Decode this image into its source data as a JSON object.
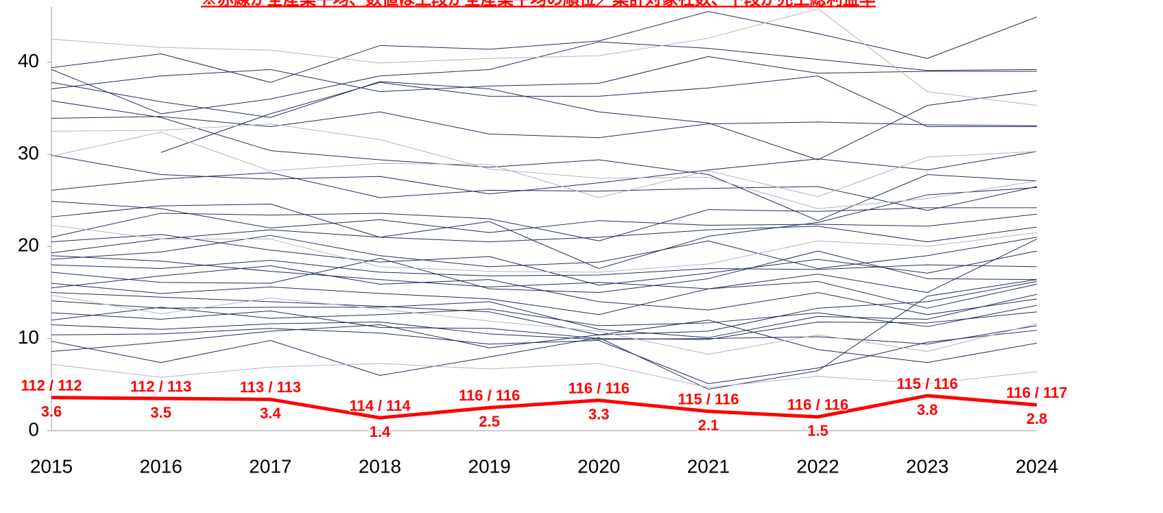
{
  "chart_data": {
    "type": "line",
    "title": "※赤線が全産業平均、数値は上段が全産業平均の順位／集計対象社数、下段が売上総利益率",
    "categories": [
      "2015",
      "2016",
      "2017",
      "2018",
      "2019",
      "2020",
      "2021",
      "2022",
      "2023",
      "2024"
    ],
    "ylim": [
      0,
      46
    ],
    "yticks": [
      0,
      10,
      20,
      30,
      40
    ],
    "grid": false,
    "series": [
      {
        "color": "#1f2d5a",
        "values": [
          39.4,
          40.9,
          37.8,
          41.8,
          41.4,
          42.3,
          45.5,
          43.1,
          40.4,
          44.9
        ]
      },
      {
        "color": "#1f2d5a",
        "values": [
          37.1,
          38.5,
          39.2,
          36.8,
          37.4,
          37.7,
          40.6,
          38.8,
          39.0,
          39.0
        ]
      },
      {
        "color": "#1f2d5a",
        "values": [
          39.2,
          34.4,
          36.0,
          38.5,
          39.2,
          42.2,
          41.5,
          40.3,
          39.1,
          39.2
        ]
      },
      {
        "color": "#1f2d5a",
        "values": [
          37.8,
          35.7,
          34.0,
          37.9,
          37.1,
          34.6,
          33.4,
          29.4,
          35.3,
          36.9
        ]
      },
      {
        "color": "#1f2d5a",
        "values": [
          null,
          30.2,
          34.4,
          37.8,
          36.3,
          36.3,
          37.2,
          38.5,
          33.0,
          33.0
        ]
      },
      {
        "color": "#1f2d5a",
        "values": [
          35.8,
          34.0,
          30.4,
          29.4,
          28.6,
          29.4,
          27.8,
          22.8,
          27.8,
          27.1
        ]
      },
      {
        "color": "#1f2d5a",
        "values": [
          33.9,
          34.1,
          33.0,
          34.6,
          32.2,
          31.8,
          33.3,
          33.5,
          33.2,
          33.1
        ]
      },
      {
        "color": "#1f2d5a",
        "values": [
          29.9,
          27.8,
          27.3,
          27.6,
          25.7,
          26.9,
          28.3,
          29.5,
          28.3,
          30.3
        ]
      },
      {
        "color": "#1f2d5a",
        "values": [
          26.1,
          27.3,
          28.0,
          25.3,
          26.1,
          26.0,
          26.3,
          26.5,
          23.9,
          26.5
        ]
      },
      {
        "color": "#1f2d5a",
        "values": [
          23.2,
          24.4,
          24.6,
          21.0,
          22.7,
          17.6,
          21.1,
          22.6,
          25.6,
          26.4
        ]
      },
      {
        "color": "#1f2d5a",
        "values": [
          21.0,
          23.6,
          23.4,
          23.6,
          23.0,
          20.6,
          24.0,
          23.8,
          24.2,
          24.2
        ]
      },
      {
        "color": "#1f2d5a",
        "values": [
          19.3,
          20.8,
          21.8,
          21.0,
          20.5,
          21.0,
          21.8,
          22.2,
          20.5,
          22.1
        ]
      },
      {
        "color": "#1f2d5a",
        "values": [
          18.6,
          19.4,
          21.2,
          19.0,
          17.8,
          18.3,
          20.6,
          17.6,
          19.0,
          21.0
        ]
      },
      {
        "color": "#1f2d5a",
        "values": [
          18.0,
          17.6,
          18.5,
          17.2,
          16.8,
          16.9,
          17.6,
          17.5,
          18.0,
          17.8
        ]
      },
      {
        "color": "#1f2d5a",
        "values": [
          17.2,
          16.1,
          16.0,
          18.7,
          15.4,
          15.0,
          16.5,
          19.5,
          16.5,
          16.4
        ]
      },
      {
        "color": "#1f2d5a",
        "values": [
          16.0,
          14.9,
          15.6,
          14.9,
          14.3,
          12.6,
          15.4,
          16.2,
          13.3,
          15.9
        ]
      },
      {
        "color": "#1f2d5a",
        "values": [
          15.0,
          14.5,
          14.0,
          13.5,
          12.9,
          10.4,
          10.8,
          13.3,
          14.0,
          16.2
        ]
      },
      {
        "color": "#1f2d5a",
        "values": [
          14.1,
          13.3,
          13.4,
          13.4,
          14.0,
          11.0,
          10.1,
          12.4,
          12.1,
          14.8
        ]
      },
      {
        "color": "#1f2d5a",
        "values": [
          12.8,
          12.1,
          13.0,
          11.2,
          11.1,
          10.0,
          9.9,
          11.8,
          11.7,
          12.9
        ]
      },
      {
        "color": "#1f2d5a",
        "values": [
          11.5,
          11.0,
          11.6,
          11.8,
          10.5,
          9.9,
          10.0,
          10.2,
          9.4,
          11.4
        ]
      },
      {
        "color": "#1f2d5a",
        "values": [
          10.4,
          10.5,
          11.1,
          10.6,
          9.4,
          9.8,
          5.1,
          6.8,
          9.6,
          10.9
        ]
      },
      {
        "color": "#1f2d5a",
        "values": [
          9.7,
          7.4,
          9.8,
          6.0,
          8.0,
          10.1,
          4.5,
          6.5,
          14.6,
          16.4
        ]
      },
      {
        "color": "#1f2d5a",
        "values": [
          8.6,
          9.6,
          10.8,
          11.5,
          9.0,
          10.4,
          12.0,
          8.8,
          7.4,
          9.5
        ]
      },
      {
        "color": "#1f2d5a",
        "values": [
          20.5,
          21.3,
          19.6,
          18.3,
          18.9,
          15.8,
          17.1,
          18.6,
          17.1,
          19.5
        ]
      },
      {
        "color": "#1f2d5a",
        "values": [
          15.5,
          16.8,
          17.9,
          15.9,
          16.4,
          14.0,
          13.1,
          15.0,
          12.6,
          14.3
        ]
      },
      {
        "color": "#1f2d5a",
        "values": [
          12.0,
          13.4,
          12.2,
          12.6,
          13.2,
          11.4,
          11.7,
          12.8,
          11.3,
          13.6
        ]
      },
      {
        "color": "#1f2d5a",
        "values": [
          24.9,
          24.1,
          22.0,
          22.9,
          21.5,
          22.8,
          22.3,
          22.4,
          22.2,
          23.5
        ]
      },
      {
        "color": "#1f2d5a",
        "values": [
          19.0,
          18.4,
          17.3,
          16.4,
          15.6,
          16.1,
          15.4,
          17.0,
          15.0,
          20.8
        ]
      },
      {
        "color": "#b0b4bc",
        "values": [
          42.5,
          41.6,
          41.3,
          39.9,
          40.4,
          40.7,
          42.6,
          45.8,
          36.8,
          35.3
        ]
      },
      {
        "color": "#b0b4bc",
        "values": [
          29.8,
          32.4,
          28.2,
          29.0,
          28.9,
          25.3,
          28.2,
          25.4,
          29.7,
          30.3
        ]
      },
      {
        "color": "#b0b4bc",
        "values": [
          22.3,
          20.8,
          20.8,
          17.8,
          17.3,
          17.2,
          18.1,
          20.6,
          20.0,
          21.5
        ]
      },
      {
        "color": "#b0b4bc",
        "values": [
          14.7,
          12.7,
          14.4,
          13.2,
          11.9,
          10.8,
          8.3,
          10.4,
          8.6,
          11.6
        ]
      },
      {
        "color": "#b0b4bc",
        "values": [
          7.2,
          5.8,
          6.9,
          7.3,
          6.7,
          7.3,
          4.7,
          5.9,
          5.1,
          6.4
        ]
      },
      {
        "color": "#b0b4bc",
        "values": [
          32.5,
          32.6,
          33.3,
          31.6,
          28.4,
          27.4,
          27.5,
          24.1,
          25.2,
          27.1
        ]
      },
      {
        "color": "#ff0000",
        "width": 5,
        "values": [
          3.6,
          3.5,
          3.4,
          1.4,
          2.5,
          3.3,
          2.1,
          1.5,
          3.8,
          2.8
        ],
        "annotations": [
          "112 / 112",
          "112 / 113",
          "113 / 113",
          "114 / 114",
          "116 / 116",
          "116 / 116",
          "115 / 116",
          "116 / 116",
          "115 / 116",
          "116 / 117"
        ]
      }
    ]
  }
}
